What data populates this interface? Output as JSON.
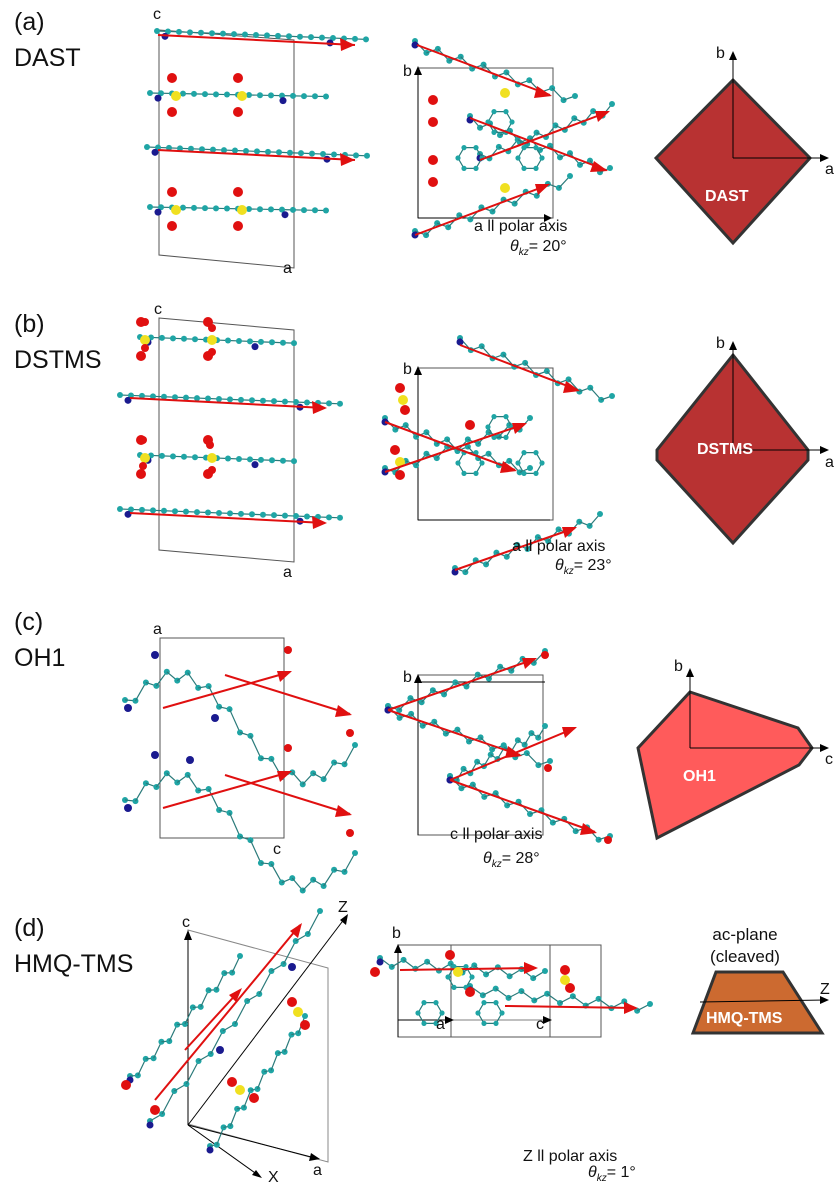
{
  "colors": {
    "carbon": "#1fa5a5",
    "nitrogen": "#1a1a8f",
    "oxygen": "#e01010",
    "sulfur": "#f0e020",
    "arrow": "#e01010",
    "dast": "#b83232",
    "dstms": "#b83232",
    "oh1": "#ff5b5b",
    "hmq": "#cc6a30",
    "outline": "#333333"
  },
  "panels": [
    {
      "id": "(a)",
      "name": "DAST",
      "axes1": {
        "v": "c",
        "h": "a"
      },
      "axes2": {
        "v": "b"
      },
      "caption": "a ll polar axis",
      "theta": "θ",
      "theta_sub": "kz",
      "theta_val": "= 20°",
      "shape": {
        "label": "DAST",
        "v": "b",
        "h": "a"
      }
    },
    {
      "id": "(b)",
      "name": "DSTMS",
      "axes1": {
        "v": "c",
        "h": "a"
      },
      "axes2": {
        "v": "b"
      },
      "caption": "a ll polar axis",
      "theta": "θ",
      "theta_sub": "kz",
      "theta_val": "= 23°",
      "shape": {
        "label": "DSTMS",
        "v": "b",
        "h": "a"
      }
    },
    {
      "id": "(c)",
      "name": "OH1",
      "axes1": {
        "v": "a",
        "h": "c"
      },
      "axes2": {
        "v": "b"
      },
      "caption": "c ll polar axis",
      "theta": "θ",
      "theta_sub": "kz",
      "theta_val": "= 28°",
      "shape": {
        "label": "OH1",
        "v": "b",
        "h": "c"
      }
    },
    {
      "id": "(d)",
      "name": "HMQ-TMS",
      "axes1": {
        "v": "c",
        "h": "a",
        "z": "Z",
        "x": "X"
      },
      "axes2": {
        "v": "b",
        "h1": "a",
        "h2": "c"
      },
      "caption": "Z ll polar axis",
      "theta": "θ",
      "theta_sub": "kz",
      "theta_val": "= 1°",
      "shape": {
        "label": "HMQ-TMS",
        "h": "Z",
        "top_line1": "ac-plane",
        "top_line2": "(cleaved)"
      }
    }
  ]
}
